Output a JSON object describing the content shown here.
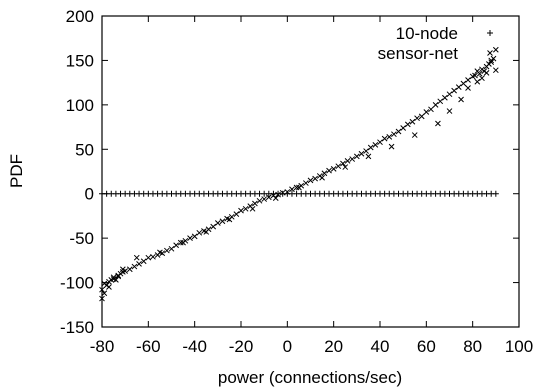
{
  "chart_data": {
    "type": "scatter",
    "title": "",
    "xlabel": "power (connections/sec)",
    "ylabel": "PDF",
    "xlim": [
      -80,
      100
    ],
    "ylim": [
      -150,
      200
    ],
    "xticks": [
      -80,
      -60,
      -40,
      -20,
      0,
      20,
      40,
      60,
      80,
      100
    ],
    "yticks": [
      -150,
      -100,
      -50,
      0,
      50,
      100,
      150,
      200
    ],
    "grid": false,
    "legend_position": "top-right",
    "series": [
      {
        "name": "10-node",
        "marker": "plus",
        "color": "#000000",
        "x": [
          -80,
          -78,
          -76,
          -74,
          -72,
          -70,
          -68,
          -66,
          -64,
          -62,
          -60,
          -58,
          -56,
          -54,
          -52,
          -50,
          -48,
          -46,
          -44,
          -42,
          -40,
          -38,
          -36,
          -34,
          -32,
          -30,
          -28,
          -26,
          -24,
          -22,
          -20,
          -18,
          -16,
          -14,
          -12,
          -10,
          -8,
          -6,
          -4,
          -2,
          0,
          2,
          4,
          6,
          8,
          10,
          12,
          14,
          16,
          18,
          20,
          22,
          24,
          26,
          28,
          30,
          32,
          34,
          36,
          38,
          40,
          42,
          44,
          46,
          48,
          50,
          52,
          54,
          56,
          58,
          60,
          62,
          64,
          66,
          68,
          70,
          72,
          74,
          76,
          78,
          80,
          82,
          84,
          86,
          88,
          90
        ],
        "y": [
          0,
          0,
          0,
          0,
          0,
          0,
          0,
          0,
          0,
          0,
          0,
          0,
          0,
          0,
          0,
          0,
          0,
          0,
          0,
          0,
          0,
          0,
          0,
          0,
          0,
          0,
          0,
          0,
          0,
          0,
          0,
          0,
          0,
          0,
          0,
          0,
          0,
          0,
          0,
          0,
          0,
          0,
          0,
          0,
          0,
          0,
          0,
          0,
          0,
          0,
          0,
          0,
          0,
          0,
          0,
          0,
          0,
          0,
          0,
          0,
          0,
          0,
          0,
          0,
          0,
          0,
          0,
          0,
          0,
          0,
          0,
          0,
          0,
          0,
          0,
          0,
          0,
          0,
          0,
          0,
          0,
          0,
          0,
          0,
          0,
          0
        ]
      },
      {
        "name": "sensor-net",
        "marker": "cross",
        "color": "#000000",
        "x": [
          -80,
          -79,
          -78,
          -77,
          -76,
          -75,
          -74,
          -73,
          -72,
          -71,
          -70,
          -68,
          -66,
          -64,
          -62,
          -60,
          -58,
          -56,
          -54,
          -52,
          -50,
          -48,
          -46,
          -44,
          -42,
          -40,
          -38,
          -36,
          -34,
          -32,
          -30,
          -28,
          -26,
          -24,
          -22,
          -20,
          -18,
          -16,
          -14,
          -12,
          -10,
          -8,
          -6,
          -4,
          -2,
          0,
          2,
          4,
          6,
          8,
          10,
          12,
          14,
          16,
          18,
          20,
          22,
          24,
          26,
          28,
          30,
          32,
          34,
          36,
          38,
          40,
          42,
          44,
          46,
          48,
          50,
          52,
          54,
          56,
          58,
          60,
          62,
          64,
          66,
          68,
          70,
          72,
          74,
          76,
          78,
          80,
          81,
          82,
          83,
          84,
          85,
          86,
          87,
          88,
          89,
          90,
          -80,
          -79,
          -77,
          -75,
          -73,
          -71,
          -65,
          -55,
          -45,
          -35,
          -25,
          -15,
          -5,
          5,
          15,
          25,
          35,
          45,
          55,
          65,
          70,
          75,
          78,
          82,
          84,
          86,
          88,
          90
        ],
        "y": [
          -108,
          -112,
          -103,
          -99,
          -97,
          -94,
          -97,
          -93,
          -90,
          -88,
          -87,
          -85,
          -82,
          -79,
          -76,
          -72,
          -71,
          -69,
          -67,
          -64,
          -62,
          -58,
          -55,
          -53,
          -50,
          -48,
          -44,
          -42,
          -40,
          -37,
          -33,
          -31,
          -28,
          -26,
          -23,
          -19,
          -17,
          -14,
          -11,
          -8,
          -6,
          -4,
          -2,
          -1,
          1,
          2,
          5,
          7,
          9,
          12,
          15,
          17,
          20,
          23,
          26,
          28,
          31,
          34,
          37,
          39,
          42,
          45,
          48,
          52,
          55,
          58,
          62,
          64,
          67,
          70,
          74,
          78,
          81,
          85,
          87,
          92,
          95,
          100,
          104,
          108,
          112,
          116,
          120,
          124,
          128,
          132,
          133,
          138,
          135,
          140,
          138,
          143,
          146,
          150,
          152,
          162,
          -118,
          -101,
          -105,
          -96,
          -92,
          -85,
          -72,
          -66,
          -55,
          -43,
          -29,
          -17,
          -5,
          7,
          18,
          30,
          42,
          53,
          66,
          79,
          93,
          106,
          119,
          126,
          130,
          136,
          148,
          139
        ]
      }
    ]
  }
}
